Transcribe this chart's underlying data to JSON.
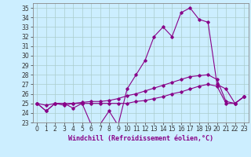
{
  "background_color": "#cceeff",
  "line_color": "#880088",
  "grid_color": "#aacccc",
  "xlabel": "Windchill (Refroidissement éolien,°C)",
  "xlabel_fontsize": 6.0,
  "tick_fontsize": 5.5,
  "xlim": [
    -0.5,
    23.5
  ],
  "ylim": [
    23,
    35.5
  ],
  "yticks": [
    23,
    24,
    25,
    26,
    27,
    28,
    29,
    30,
    31,
    32,
    33,
    34,
    35
  ],
  "xticks": [
    0,
    1,
    2,
    3,
    4,
    5,
    6,
    7,
    8,
    9,
    10,
    11,
    12,
    13,
    14,
    15,
    16,
    17,
    18,
    19,
    20,
    21,
    22,
    23
  ],
  "series1_x": [
    0,
    1,
    2,
    3,
    4,
    5,
    6,
    7,
    8,
    9,
    10,
    11,
    12,
    13,
    14,
    15,
    16,
    17,
    18,
    19,
    20,
    21,
    22,
    23
  ],
  "series1_y": [
    25.0,
    24.8,
    25.0,
    25.0,
    25.0,
    25.1,
    25.2,
    25.2,
    25.3,
    25.5,
    25.8,
    26.0,
    26.3,
    26.6,
    26.9,
    27.2,
    27.5,
    27.8,
    27.9,
    28.0,
    27.5,
    25.2,
    25.0,
    25.7
  ],
  "series2_x": [
    0,
    1,
    2,
    3,
    4,
    5,
    6,
    7,
    8,
    9,
    10,
    11,
    12,
    13,
    14,
    15,
    16,
    17,
    18,
    19,
    20,
    21,
    22,
    23
  ],
  "series2_y": [
    25.0,
    24.2,
    25.0,
    25.0,
    24.5,
    25.0,
    22.8,
    22.8,
    24.2,
    22.7,
    26.5,
    28.0,
    29.5,
    32.0,
    33.0,
    32.0,
    34.5,
    35.0,
    33.8,
    33.5,
    27.0,
    26.5,
    25.0,
    25.7
  ],
  "series3_x": [
    0,
    1,
    2,
    3,
    4,
    5,
    6,
    7,
    8,
    9,
    10,
    11,
    12,
    13,
    14,
    15,
    16,
    17,
    18,
    19,
    20,
    21,
    22,
    23
  ],
  "series3_y": [
    25.0,
    24.2,
    25.0,
    24.8,
    25.0,
    25.0,
    25.0,
    25.0,
    25.0,
    25.0,
    25.0,
    25.2,
    25.3,
    25.5,
    25.7,
    26.0,
    26.2,
    26.5,
    26.8,
    27.0,
    26.8,
    25.0,
    25.0,
    25.7
  ]
}
